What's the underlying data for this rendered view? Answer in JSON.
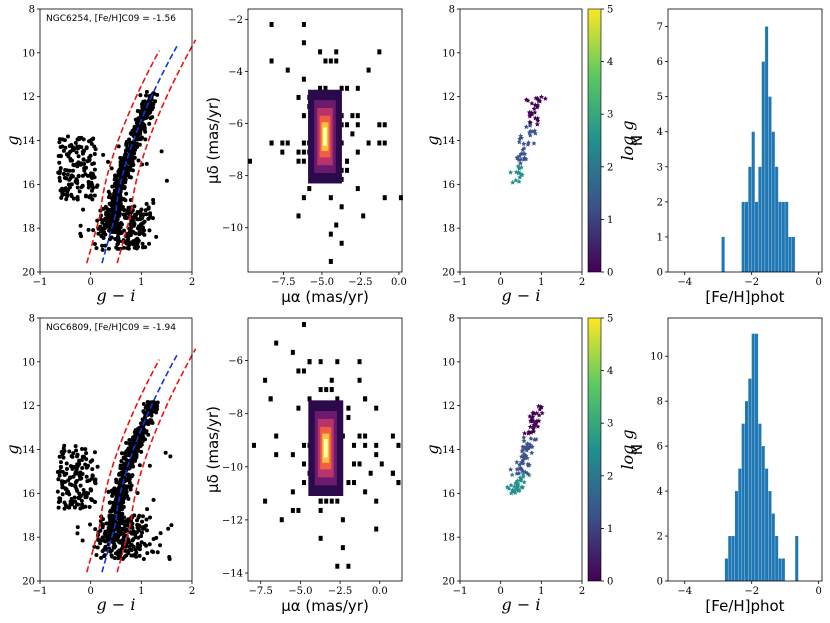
{
  "colors": {
    "data": "#000000",
    "isoRed": "#ee1111",
    "isoBlue": "#1133dd",
    "hist": "#1f77b4"
  },
  "chart_data": [
    {
      "cluster": "NGC6254",
      "cmd": {
        "type": "scatter",
        "annotation": "NGC6254, [Fe/H]C09 = -1.56",
        "xlabel": "g − i",
        "ylabel": "g",
        "xlim": [
          -1,
          2
        ],
        "ylim": [
          20,
          8
        ],
        "xticks": [
          "−1",
          "0",
          "1",
          "2"
        ],
        "yticks": [
          "8",
          "10",
          "12",
          "14",
          "16",
          "18",
          "20"
        ],
        "red_offset": 0.3
      },
      "pm": {
        "type": "heatmap",
        "xlabel": "μα (mas/yr)",
        "ylabel": "μδ (mas/yr)",
        "xlim": [
          -9.8,
          0.2
        ],
        "ylim": [
          -11.7,
          -1.6
        ],
        "xticks": [
          "−7.5",
          "−5.0",
          "−2.5",
          "0.0"
        ],
        "xtickv": [
          -7.5,
          -5,
          -2.5,
          0
        ],
        "yticks": [
          "−2",
          "−4",
          "−6",
          "−8",
          "−10"
        ],
        "ytickv": [
          -2,
          -4,
          -6,
          -8,
          -10
        ],
        "center": [
          -4.8,
          -6.5
        ]
      },
      "spec": {
        "type": "scatter",
        "xlabel": "g − i",
        "ylabel": "g",
        "cbar_label": "log g",
        "cbar_ticks": [
          "0",
          "1",
          "2",
          "3",
          "4",
          "5"
        ],
        "xlim": [
          -1,
          2
        ],
        "ylim": [
          20,
          8
        ],
        "xticks": [
          "−1",
          "0",
          "1",
          "2"
        ],
        "yticks": [
          "8",
          "10",
          "12",
          "14",
          "16",
          "18",
          "20"
        ]
      },
      "hist": {
        "type": "bar",
        "xlabel": "[Fe/H]phot",
        "ylabel": "N",
        "xlim": [
          -4.5,
          0.1
        ],
        "ylim": [
          0,
          7.5
        ],
        "xticks": [
          "−4",
          "−2",
          "0"
        ],
        "xtickv": [
          -4,
          -2,
          0
        ],
        "yticks": [
          "0",
          "1",
          "2",
          "3",
          "4",
          "5",
          "6",
          "7"
        ],
        "ytickv": [
          0,
          1,
          2,
          3,
          4,
          5,
          6,
          7
        ],
        "bars": [
          [
            -2.85,
            1
          ],
          [
            -2.25,
            2
          ],
          [
            -2.15,
            2
          ],
          [
            -2.05,
            3
          ],
          [
            -1.95,
            4
          ],
          [
            -1.85,
            2
          ],
          [
            -1.75,
            3
          ],
          [
            -1.65,
            6
          ],
          [
            -1.55,
            7
          ],
          [
            -1.45,
            5
          ],
          [
            -1.35,
            4
          ],
          [
            -1.25,
            3
          ],
          [
            -1.15,
            2
          ],
          [
            -1.05,
            2
          ],
          [
            -0.95,
            2
          ],
          [
            -0.85,
            1
          ],
          [
            -0.75,
            1
          ]
        ]
      }
    },
    {
      "cluster": "NGC6809",
      "cmd": {
        "type": "scatter",
        "annotation": "NGC6809, [Fe/H]C09 = -1.94",
        "xlabel": "g − i",
        "ylabel": "g",
        "xlim": [
          -1,
          2
        ],
        "ylim": [
          20,
          8
        ],
        "xticks": [
          "−1",
          "0",
          "1",
          "2"
        ],
        "yticks": [
          "8",
          "10",
          "12",
          "14",
          "16",
          "18",
          "20"
        ],
        "red_offset": 0.3
      },
      "pm": {
        "type": "heatmap",
        "xlabel": "μα (mas/yr)",
        "ylabel": "μδ (mas/yr)",
        "xlim": [
          -8.3,
          1.4
        ],
        "ylim": [
          -14.3,
          -4.4
        ],
        "xticks": [
          "−7.5",
          "−5.0",
          "−2.5",
          "0.0"
        ],
        "xtickv": [
          -7.5,
          -5,
          -2.5,
          0
        ],
        "yticks": [
          "−6",
          "−8",
          "−10",
          "−12",
          "−14"
        ],
        "ytickv": [
          -6,
          -8,
          -10,
          -12,
          -14
        ],
        "center": [
          -3.4,
          -9.3
        ]
      },
      "spec": {
        "type": "scatter",
        "xlabel": "g − i",
        "ylabel": "g",
        "cbar_label": "log g",
        "cbar_ticks": [
          "0",
          "1",
          "2",
          "3",
          "4",
          "5"
        ],
        "xlim": [
          -1,
          2
        ],
        "ylim": [
          20,
          8
        ],
        "xticks": [
          "−1",
          "0",
          "1",
          "2"
        ],
        "yticks": [
          "8",
          "10",
          "12",
          "14",
          "16",
          "18",
          "20"
        ]
      },
      "hist": {
        "type": "bar",
        "xlabel": "[Fe/H]phot",
        "ylabel": "N",
        "xlim": [
          -4.5,
          0.1
        ],
        "ylim": [
          0,
          11.7
        ],
        "xticks": [
          "−4",
          "−2",
          "0"
        ],
        "xtickv": [
          -4,
          -2,
          0
        ],
        "yticks": [
          "0",
          "2",
          "4",
          "6",
          "8",
          "10"
        ],
        "ytickv": [
          0,
          2,
          4,
          6,
          8,
          10
        ],
        "bars": [
          [
            -2.75,
            1
          ],
          [
            -2.65,
            2
          ],
          [
            -2.55,
            2
          ],
          [
            -2.45,
            4
          ],
          [
            -2.35,
            5
          ],
          [
            -2.25,
            7
          ],
          [
            -2.15,
            8
          ],
          [
            -2.05,
            9
          ],
          [
            -1.95,
            11
          ],
          [
            -1.85,
            11
          ],
          [
            -1.75,
            7
          ],
          [
            -1.65,
            6
          ],
          [
            -1.55,
            5
          ],
          [
            -1.45,
            4
          ],
          [
            -1.35,
            3
          ],
          [
            -1.25,
            2
          ],
          [
            -1.15,
            1
          ],
          [
            -1.05,
            1
          ],
          [
            -0.65,
            2
          ]
        ]
      }
    }
  ]
}
